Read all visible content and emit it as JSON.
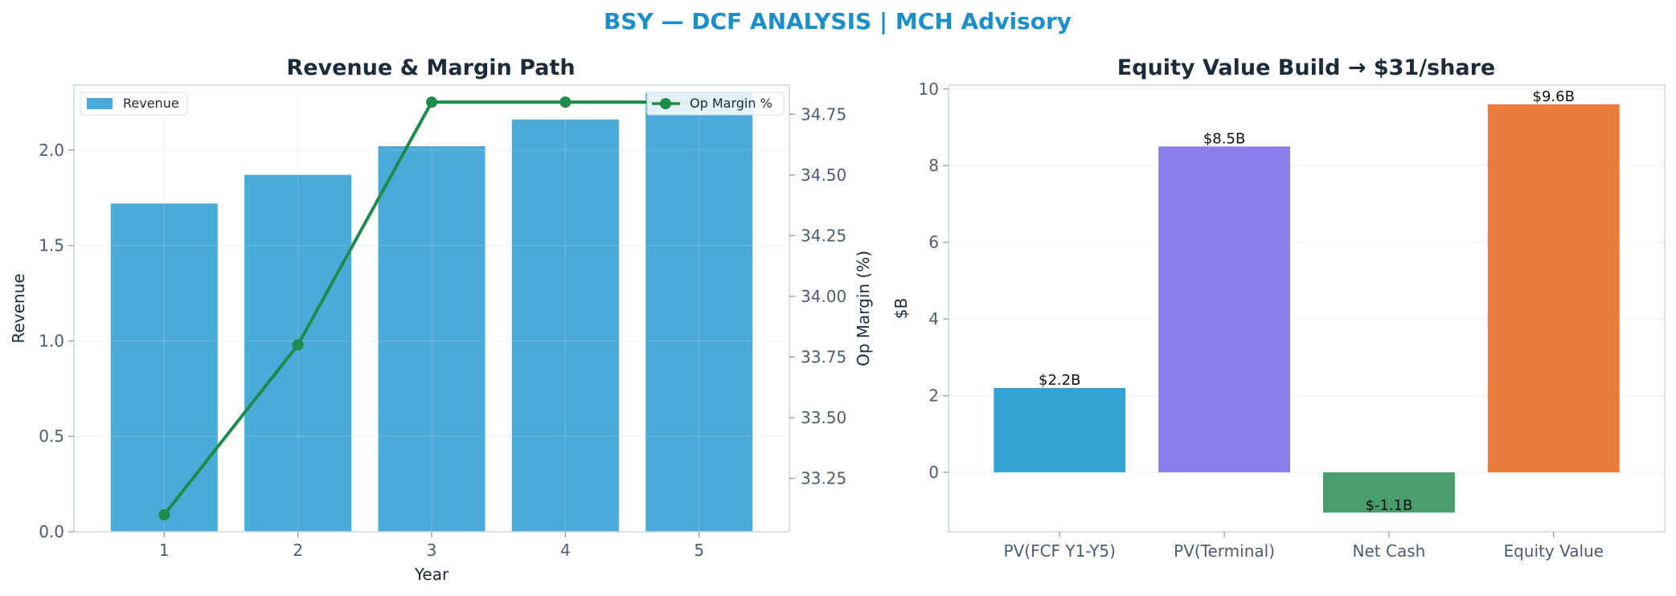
{
  "figure_title": "BSY — DCF ANALYSIS | MCH Advisory",
  "colors": {
    "title": "#1a8fc9",
    "revenue_bar": "#4aabd8",
    "margin_line": "#1e8a4c",
    "pv_fcf": "#35a2d4",
    "pv_terminal": "#8a7fec",
    "net_cash": "#4a9e6c",
    "equity_value": "#ec7b3e"
  },
  "chart_data": [
    {
      "type": "bar",
      "title": "Revenue & Margin Path",
      "xlabel": "Year",
      "ylabel": "Revenue",
      "y2label": "Op Margin (%)",
      "categories": [
        "1",
        "2",
        "3",
        "4",
        "5"
      ],
      "ylim": [
        0,
        2.34
      ],
      "y2lim": [
        33.03,
        34.87
      ],
      "yticks": [
        "0.0",
        "0.5",
        "1.0",
        "1.5",
        "2.0"
      ],
      "y2ticks": [
        "33.25",
        "33.50",
        "33.75",
        "34.00",
        "34.25",
        "34.50",
        "34.75"
      ],
      "grid": true,
      "series": [
        {
          "name": "Revenue",
          "kind": "bar",
          "axis": "left",
          "values": [
            1.72,
            1.87,
            2.02,
            2.16,
            2.3
          ]
        },
        {
          "name": "Op Margin %",
          "kind": "line",
          "axis": "right",
          "values": [
            33.1,
            33.8,
            34.8,
            34.8,
            34.8
          ]
        }
      ],
      "legends": [
        {
          "label": "Revenue",
          "placement": "upper-left"
        },
        {
          "label": "Op Margin %",
          "placement": "upper-right"
        }
      ]
    },
    {
      "type": "bar",
      "title": "Equity Value Build → $31/share",
      "xlabel": "",
      "ylabel": "$B",
      "categories": [
        "PV(FCF Y1-Y5)",
        "PV(Terminal)",
        "Net Cash",
        "Equity Value"
      ],
      "values": [
        2.2,
        8.5,
        -1.05,
        9.6
      ],
      "data_labels": [
        "$2.2B",
        "$8.5B",
        "$-1.1B",
        "$9.6B"
      ],
      "ylim": [
        -1.55,
        10.1
      ],
      "yticks": [
        "0",
        "2",
        "4",
        "6",
        "8",
        "10"
      ],
      "grid": true
    }
  ]
}
